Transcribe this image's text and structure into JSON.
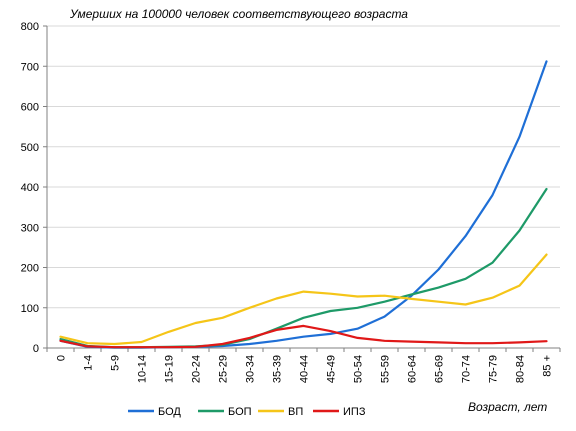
{
  "chart_data": {
    "type": "line",
    "title": "Умерших на 100000 человек соответствующего возраста",
    "xlabel": "Возраст, лет",
    "ylabel": "",
    "ylim": [
      0,
      800
    ],
    "yticks": [
      0,
      100,
      200,
      300,
      400,
      500,
      600,
      700,
      800
    ],
    "grid": true,
    "legend_position": "bottom",
    "categories": [
      "0",
      "1-4",
      "5-9",
      "10-14",
      "15-19",
      "20-24",
      "25-29",
      "30-34",
      "35-39",
      "40-44",
      "45-49",
      "50-54",
      "55-59",
      "60-64",
      "65-69",
      "70-74",
      "75-79",
      "80-84",
      "85 +"
    ],
    "series": [
      {
        "name": "БОД",
        "color": "#1F6FD6",
        "values": [
          18,
          3,
          1,
          1,
          2,
          3,
          5,
          10,
          18,
          28,
          35,
          48,
          78,
          130,
          195,
          278,
          380,
          525,
          712
        ]
      },
      {
        "name": "БОП",
        "color": "#1E9A68",
        "values": [
          22,
          5,
          2,
          2,
          3,
          4,
          8,
          22,
          48,
          75,
          92,
          100,
          115,
          133,
          150,
          172,
          212,
          292,
          395
        ]
      },
      {
        "name": "ВП",
        "color": "#F5C518",
        "values": [
          28,
          12,
          10,
          15,
          40,
          62,
          75,
          100,
          123,
          140,
          135,
          128,
          130,
          122,
          115,
          108,
          125,
          155,
          232
        ]
      },
      {
        "name": "ИПЗ",
        "color": "#E01818",
        "values": [
          18,
          4,
          2,
          2,
          2,
          3,
          10,
          25,
          45,
          55,
          42,
          25,
          18,
          16,
          14,
          12,
          12,
          14,
          17
        ]
      }
    ]
  }
}
